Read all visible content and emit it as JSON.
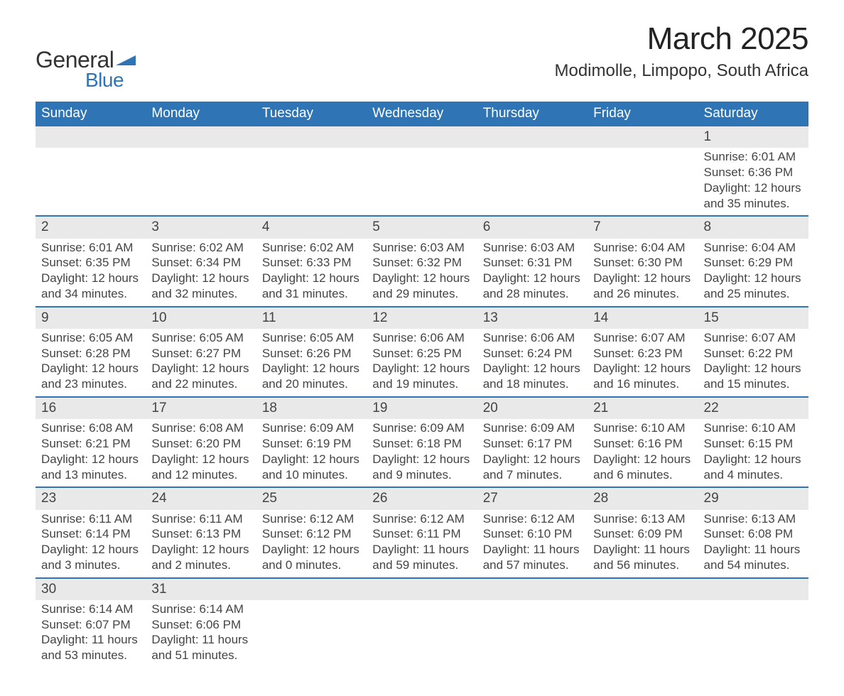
{
  "logo": {
    "text1": "General",
    "text2": "Blue",
    "flag_color": "#2f75b5"
  },
  "title": "March 2025",
  "location": "Modimolle, Limpopo, South Africa",
  "colors": {
    "header_bg": "#2f75b5",
    "header_fg": "#ffffff",
    "daynum_bg": "#e9e9e9",
    "row_border": "#2f75b5",
    "text": "#444444",
    "background": "#ffffff"
  },
  "typography": {
    "title_fontsize": 44,
    "location_fontsize": 24,
    "dow_fontsize": 19,
    "daynum_fontsize": 19,
    "body_fontsize": 17,
    "logo_fontsize": 32
  },
  "dow": [
    "Sunday",
    "Monday",
    "Tuesday",
    "Wednesday",
    "Thursday",
    "Friday",
    "Saturday"
  ],
  "weeks": [
    [
      null,
      null,
      null,
      null,
      null,
      null,
      {
        "n": 1,
        "sunrise": "6:01 AM",
        "sunset": "6:36 PM",
        "dl1": "Daylight: 12 hours",
        "dl2": "and 35 minutes."
      }
    ],
    [
      {
        "n": 2,
        "sunrise": "6:01 AM",
        "sunset": "6:35 PM",
        "dl1": "Daylight: 12 hours",
        "dl2": "and 34 minutes."
      },
      {
        "n": 3,
        "sunrise": "6:02 AM",
        "sunset": "6:34 PM",
        "dl1": "Daylight: 12 hours",
        "dl2": "and 32 minutes."
      },
      {
        "n": 4,
        "sunrise": "6:02 AM",
        "sunset": "6:33 PM",
        "dl1": "Daylight: 12 hours",
        "dl2": "and 31 minutes."
      },
      {
        "n": 5,
        "sunrise": "6:03 AM",
        "sunset": "6:32 PM",
        "dl1": "Daylight: 12 hours",
        "dl2": "and 29 minutes."
      },
      {
        "n": 6,
        "sunrise": "6:03 AM",
        "sunset": "6:31 PM",
        "dl1": "Daylight: 12 hours",
        "dl2": "and 28 minutes."
      },
      {
        "n": 7,
        "sunrise": "6:04 AM",
        "sunset": "6:30 PM",
        "dl1": "Daylight: 12 hours",
        "dl2": "and 26 minutes."
      },
      {
        "n": 8,
        "sunrise": "6:04 AM",
        "sunset": "6:29 PM",
        "dl1": "Daylight: 12 hours",
        "dl2": "and 25 minutes."
      }
    ],
    [
      {
        "n": 9,
        "sunrise": "6:05 AM",
        "sunset": "6:28 PM",
        "dl1": "Daylight: 12 hours",
        "dl2": "and 23 minutes."
      },
      {
        "n": 10,
        "sunrise": "6:05 AM",
        "sunset": "6:27 PM",
        "dl1": "Daylight: 12 hours",
        "dl2": "and 22 minutes."
      },
      {
        "n": 11,
        "sunrise": "6:05 AM",
        "sunset": "6:26 PM",
        "dl1": "Daylight: 12 hours",
        "dl2": "and 20 minutes."
      },
      {
        "n": 12,
        "sunrise": "6:06 AM",
        "sunset": "6:25 PM",
        "dl1": "Daylight: 12 hours",
        "dl2": "and 19 minutes."
      },
      {
        "n": 13,
        "sunrise": "6:06 AM",
        "sunset": "6:24 PM",
        "dl1": "Daylight: 12 hours",
        "dl2": "and 18 minutes."
      },
      {
        "n": 14,
        "sunrise": "6:07 AM",
        "sunset": "6:23 PM",
        "dl1": "Daylight: 12 hours",
        "dl2": "and 16 minutes."
      },
      {
        "n": 15,
        "sunrise": "6:07 AM",
        "sunset": "6:22 PM",
        "dl1": "Daylight: 12 hours",
        "dl2": "and 15 minutes."
      }
    ],
    [
      {
        "n": 16,
        "sunrise": "6:08 AM",
        "sunset": "6:21 PM",
        "dl1": "Daylight: 12 hours",
        "dl2": "and 13 minutes."
      },
      {
        "n": 17,
        "sunrise": "6:08 AM",
        "sunset": "6:20 PM",
        "dl1": "Daylight: 12 hours",
        "dl2": "and 12 minutes."
      },
      {
        "n": 18,
        "sunrise": "6:09 AM",
        "sunset": "6:19 PM",
        "dl1": "Daylight: 12 hours",
        "dl2": "and 10 minutes."
      },
      {
        "n": 19,
        "sunrise": "6:09 AM",
        "sunset": "6:18 PM",
        "dl1": "Daylight: 12 hours",
        "dl2": "and 9 minutes."
      },
      {
        "n": 20,
        "sunrise": "6:09 AM",
        "sunset": "6:17 PM",
        "dl1": "Daylight: 12 hours",
        "dl2": "and 7 minutes."
      },
      {
        "n": 21,
        "sunrise": "6:10 AM",
        "sunset": "6:16 PM",
        "dl1": "Daylight: 12 hours",
        "dl2": "and 6 minutes."
      },
      {
        "n": 22,
        "sunrise": "6:10 AM",
        "sunset": "6:15 PM",
        "dl1": "Daylight: 12 hours",
        "dl2": "and 4 minutes."
      }
    ],
    [
      {
        "n": 23,
        "sunrise": "6:11 AM",
        "sunset": "6:14 PM",
        "dl1": "Daylight: 12 hours",
        "dl2": "and 3 minutes."
      },
      {
        "n": 24,
        "sunrise": "6:11 AM",
        "sunset": "6:13 PM",
        "dl1": "Daylight: 12 hours",
        "dl2": "and 2 minutes."
      },
      {
        "n": 25,
        "sunrise": "6:12 AM",
        "sunset": "6:12 PM",
        "dl1": "Daylight: 12 hours",
        "dl2": "and 0 minutes."
      },
      {
        "n": 26,
        "sunrise": "6:12 AM",
        "sunset": "6:11 PM",
        "dl1": "Daylight: 11 hours",
        "dl2": "and 59 minutes."
      },
      {
        "n": 27,
        "sunrise": "6:12 AM",
        "sunset": "6:10 PM",
        "dl1": "Daylight: 11 hours",
        "dl2": "and 57 minutes."
      },
      {
        "n": 28,
        "sunrise": "6:13 AM",
        "sunset": "6:09 PM",
        "dl1": "Daylight: 11 hours",
        "dl2": "and 56 minutes."
      },
      {
        "n": 29,
        "sunrise": "6:13 AM",
        "sunset": "6:08 PM",
        "dl1": "Daylight: 11 hours",
        "dl2": "and 54 minutes."
      }
    ],
    [
      {
        "n": 30,
        "sunrise": "6:14 AM",
        "sunset": "6:07 PM",
        "dl1": "Daylight: 11 hours",
        "dl2": "and 53 minutes."
      },
      {
        "n": 31,
        "sunrise": "6:14 AM",
        "sunset": "6:06 PM",
        "dl1": "Daylight: 11 hours",
        "dl2": "and 51 minutes."
      },
      null,
      null,
      null,
      null,
      null
    ]
  ]
}
